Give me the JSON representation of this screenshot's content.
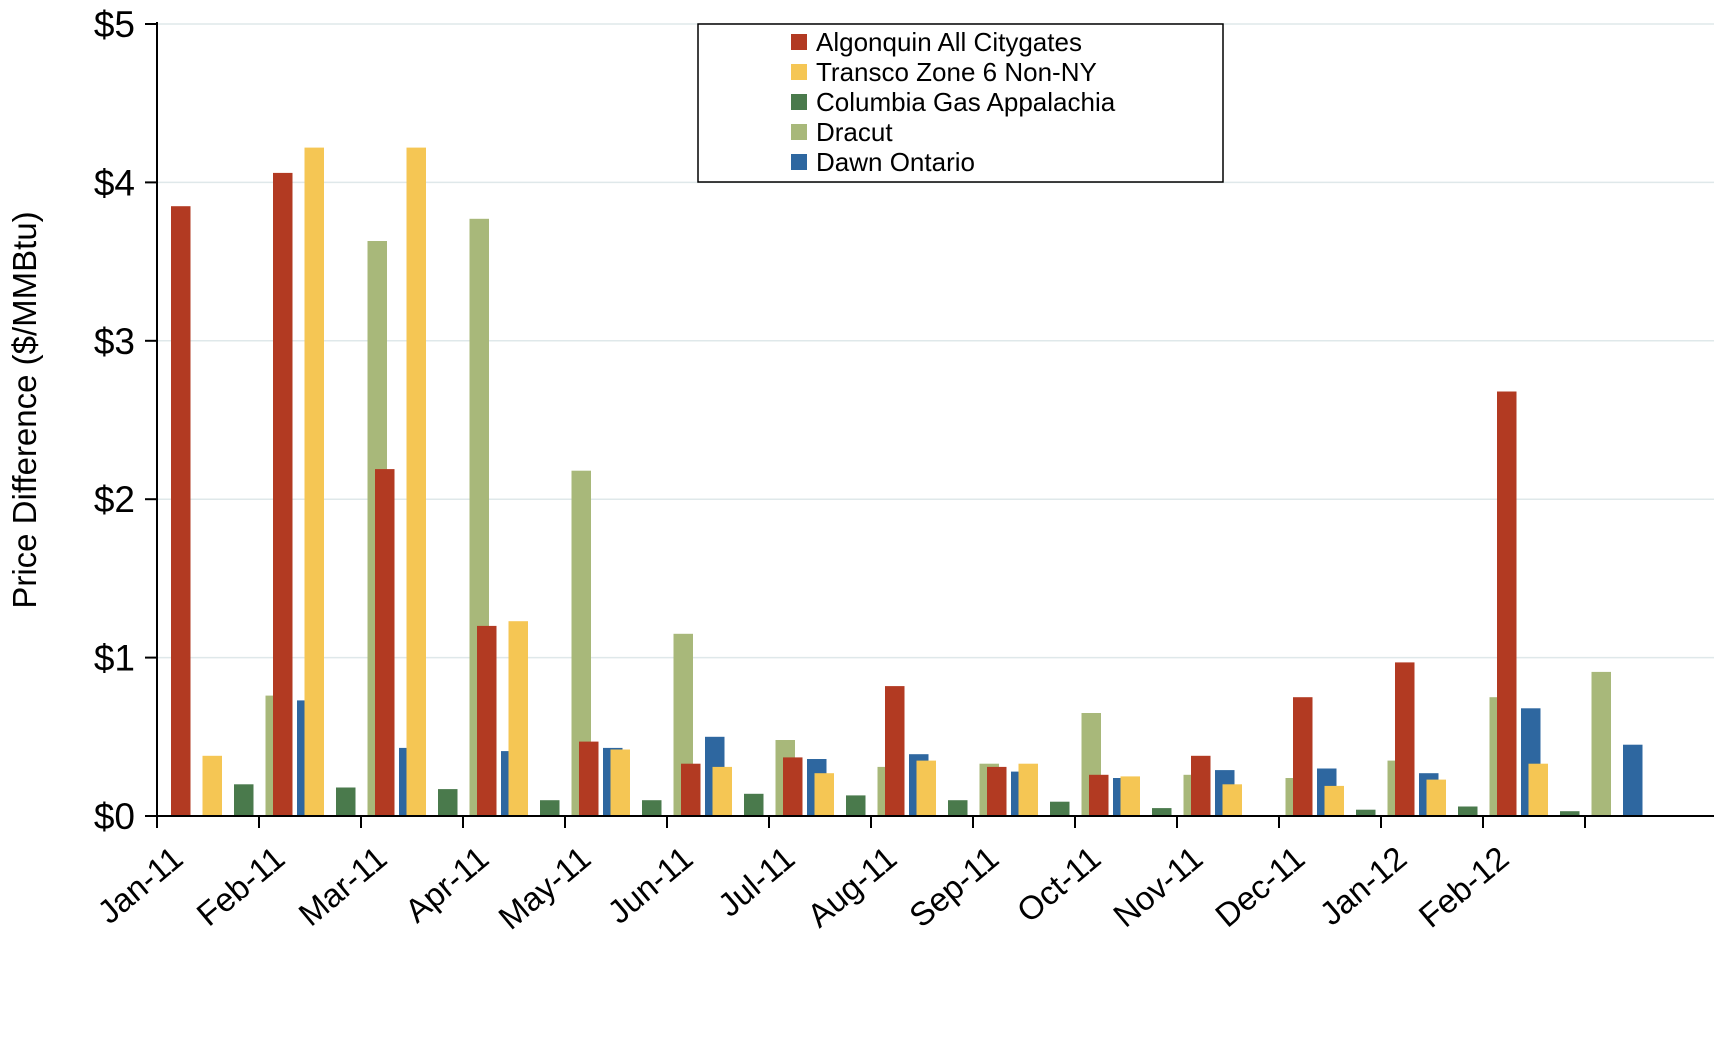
{
  "chart_data": {
    "type": "bar",
    "title": "",
    "xlabel": "",
    "ylabel": "Price Difference  ($/MMBtu)",
    "ylim": [
      0,
      5
    ],
    "y_ticks": [
      {
        "value": 0,
        "label": "$0"
      },
      {
        "value": 1,
        "label": "$1"
      },
      {
        "value": 2,
        "label": "$2"
      },
      {
        "value": 3,
        "label": "$3"
      },
      {
        "value": 4,
        "label": "$4"
      },
      {
        "value": 5,
        "label": "$5"
      }
    ],
    "grid": true,
    "legend_position": "top-center",
    "categories": [
      "Jan-11",
      "Feb-11",
      "Mar-11",
      "Apr-11",
      "May-11",
      "Jun-11",
      "Jul-11",
      "Aug-11",
      "Sep-11",
      "Oct-11",
      "Nov-11",
      "Dec-11",
      "Jan-12",
      "Feb-12"
    ],
    "series": [
      {
        "name": "Algonquin All Citygates",
        "color": "#b23a22",
        "values": [
          3.85,
          4.06,
          2.19,
          1.2,
          0.47,
          0.33,
          0.37,
          0.82,
          0.31,
          0.26,
          0.38,
          0.75,
          0.97,
          2.68
        ]
      },
      {
        "name": "Transco Zone 6 Non-NY",
        "color": "#f5c654",
        "values": [
          0.38,
          4.22,
          4.22,
          1.23,
          0.42,
          0.31,
          0.27,
          0.35,
          0.33,
          0.25,
          0.2,
          0.19,
          0.23,
          0.33
        ]
      },
      {
        "name": "Columbia Gas Appalachia",
        "color": "#4a7a4c",
        "values": [
          0.2,
          0.18,
          0.17,
          0.1,
          0.1,
          0.14,
          0.13,
          0.1,
          0.09,
          0.05,
          0.0,
          0.04,
          0.06,
          0.03
        ]
      },
      {
        "name": "Dracut",
        "color": "#a8b87a",
        "values": [
          0.76,
          3.63,
          3.77,
          2.18,
          1.15,
          0.48,
          0.31,
          0.33,
          0.65,
          0.26,
          0.24,
          0.35,
          0.75,
          0.91
        ]
      },
      {
        "name": "Dawn Ontario",
        "color": "#2e67a0",
        "values": [
          0.73,
          0.43,
          0.41,
          0.43,
          0.5,
          0.36,
          0.39,
          0.28,
          0.24,
          0.29,
          0.3,
          0.27,
          0.68,
          0.45
        ]
      }
    ]
  }
}
